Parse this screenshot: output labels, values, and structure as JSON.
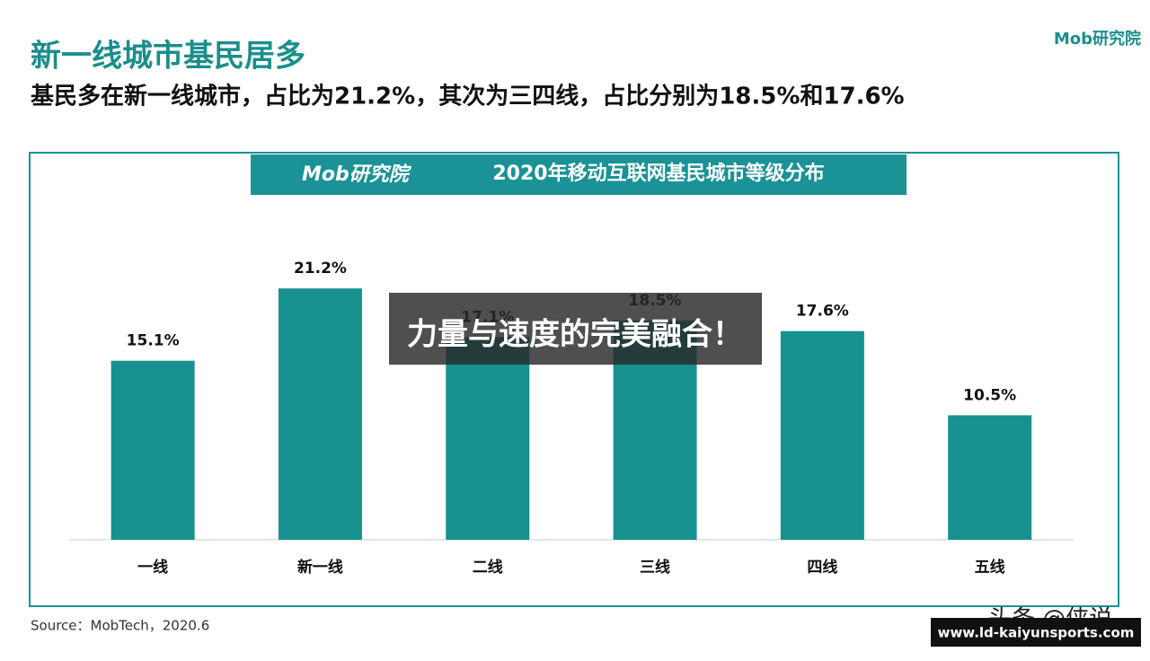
{
  "header": {
    "title": "新一线城市基民居多",
    "subtitle": "基民多在新一线城市，占比为21.2%，其次为三四线，占比分别为18.5%和17.6%",
    "logo": "Mob研究院"
  },
  "chart_data": {
    "type": "bar",
    "title": "2020年移动互联网基民城市等级分布",
    "logo": "Mob研究院",
    "categories": [
      "一线",
      "新一线",
      "二线",
      "三线",
      "四线",
      "五线"
    ],
    "values": [
      15.1,
      21.2,
      17.1,
      18.5,
      17.6,
      10.5
    ],
    "value_labels": [
      "15.1%",
      "21.2%",
      "17.1%",
      "18.5%",
      "17.6%",
      "10.5%"
    ],
    "color": "#17918f"
  },
  "source": "Source：MobTech，2020.6",
  "overlay": "力量与速度的完美融合！",
  "watermark": "头条 @侠说",
  "url": "www.ld-kaiyunsports.com"
}
